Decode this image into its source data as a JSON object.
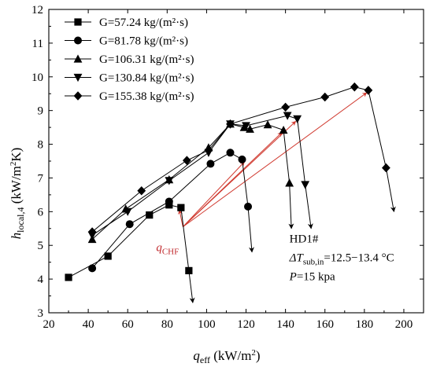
{
  "chart_data": {
    "type": "line",
    "xlabel_main": "q",
    "xlabel_sub": "eff",
    "xlabel_unit": " (kW/m",
    "xlabel_unit_sup": "2",
    "xlabel_unit_end": ")",
    "ylabel_main": "h",
    "ylabel_sub": "local,4",
    "ylabel_unit": " (kW/m",
    "ylabel_unit_sup": "2",
    "ylabel_unit_end": "K)",
    "xlim": [
      20,
      210
    ],
    "ylim": [
      3,
      12
    ],
    "xticks": [
      20,
      40,
      60,
      80,
      100,
      120,
      140,
      160,
      180,
      200
    ],
    "yticks": [
      3,
      4,
      5,
      6,
      7,
      8,
      9,
      10,
      11,
      12
    ],
    "legend_position": "top-left",
    "series": [
      {
        "name": "G=57.24 kg/(m²·s)",
        "marker": "square",
        "points": [
          [
            30,
            4.05
          ],
          [
            50,
            4.68
          ],
          [
            71,
            5.9
          ],
          [
            81,
            6.2
          ],
          [
            87,
            6.12
          ],
          [
            91,
            4.25
          ]
        ],
        "drop_arrow": [
          [
            91,
            4.25
          ],
          [
            93,
            3.3
          ]
        ]
      },
      {
        "name": "G=81.78 kg/(m²·s)",
        "marker": "circle",
        "points": [
          [
            42,
            4.32
          ],
          [
            61,
            5.63
          ],
          [
            81,
            6.3
          ],
          [
            102,
            7.42
          ],
          [
            112,
            7.75
          ],
          [
            118,
            7.55
          ],
          [
            121,
            6.15
          ]
        ],
        "drop_arrow": [
          [
            121,
            6.15
          ],
          [
            123,
            4.8
          ]
        ]
      },
      {
        "name": "G=106.31 kg/(m²·s)",
        "marker": "triangle-up",
        "points": [
          [
            42,
            5.18
          ],
          [
            59,
            6.08
          ],
          [
            81,
            6.95
          ],
          [
            101,
            7.9
          ],
          [
            112,
            8.6
          ],
          [
            119,
            8.5
          ],
          [
            122,
            8.45
          ],
          [
            131,
            8.58
          ],
          [
            139,
            8.42
          ],
          [
            142,
            6.85
          ]
        ],
        "drop_arrow": [
          [
            142,
            6.85
          ],
          [
            143,
            5.5
          ]
        ]
      },
      {
        "name": "G=130.84 kg/(m²·s)",
        "marker": "triangle-down",
        "points": [
          [
            42,
            5.3
          ],
          [
            60,
            6.0
          ],
          [
            81,
            6.92
          ],
          [
            101,
            7.75
          ],
          [
            112,
            8.6
          ],
          [
            120,
            8.55
          ],
          [
            141,
            8.85
          ],
          [
            146,
            8.75
          ],
          [
            150,
            6.8
          ]
        ],
        "drop_arrow": [
          [
            150,
            6.8
          ],
          [
            153,
            5.5
          ]
        ]
      },
      {
        "name": "G=155.38 kg/(m²·s)",
        "marker": "diamond",
        "points": [
          [
            42,
            5.4
          ],
          [
            67,
            6.62
          ],
          [
            90,
            7.52
          ],
          [
            101,
            7.82
          ],
          [
            112,
            8.6
          ],
          [
            140,
            9.1
          ],
          [
            160,
            9.4
          ],
          [
            175,
            9.7
          ],
          [
            182,
            9.6
          ],
          [
            191,
            7.3
          ]
        ],
        "drop_arrow": [
          [
            191,
            7.3
          ],
          [
            195,
            6.0
          ]
        ]
      }
    ],
    "red_arrows": {
      "origin": [
        88,
        5.55
      ],
      "targets": [
        [
          87,
          6.12
        ],
        [
          120,
          7.55
        ],
        [
          139,
          8.42
        ],
        [
          146,
          8.75
        ],
        [
          182,
          9.6
        ]
      ]
    },
    "annotation": {
      "qchf_main": "q",
      "qchf_sub": "CHF",
      "qchf_at": [
        84,
        4.95
      ],
      "lines": [
        {
          "main": "HD1#",
          "sub": "",
          "rest": ""
        },
        {
          "main": "ΔT",
          "sub": "sub,in",
          "rest": "=12.5−13.4 °C"
        },
        {
          "main": "P",
          "sub": "",
          "rest": "=15 kpa"
        }
      ],
      "text_at": [
        146,
        4.85
      ]
    }
  }
}
